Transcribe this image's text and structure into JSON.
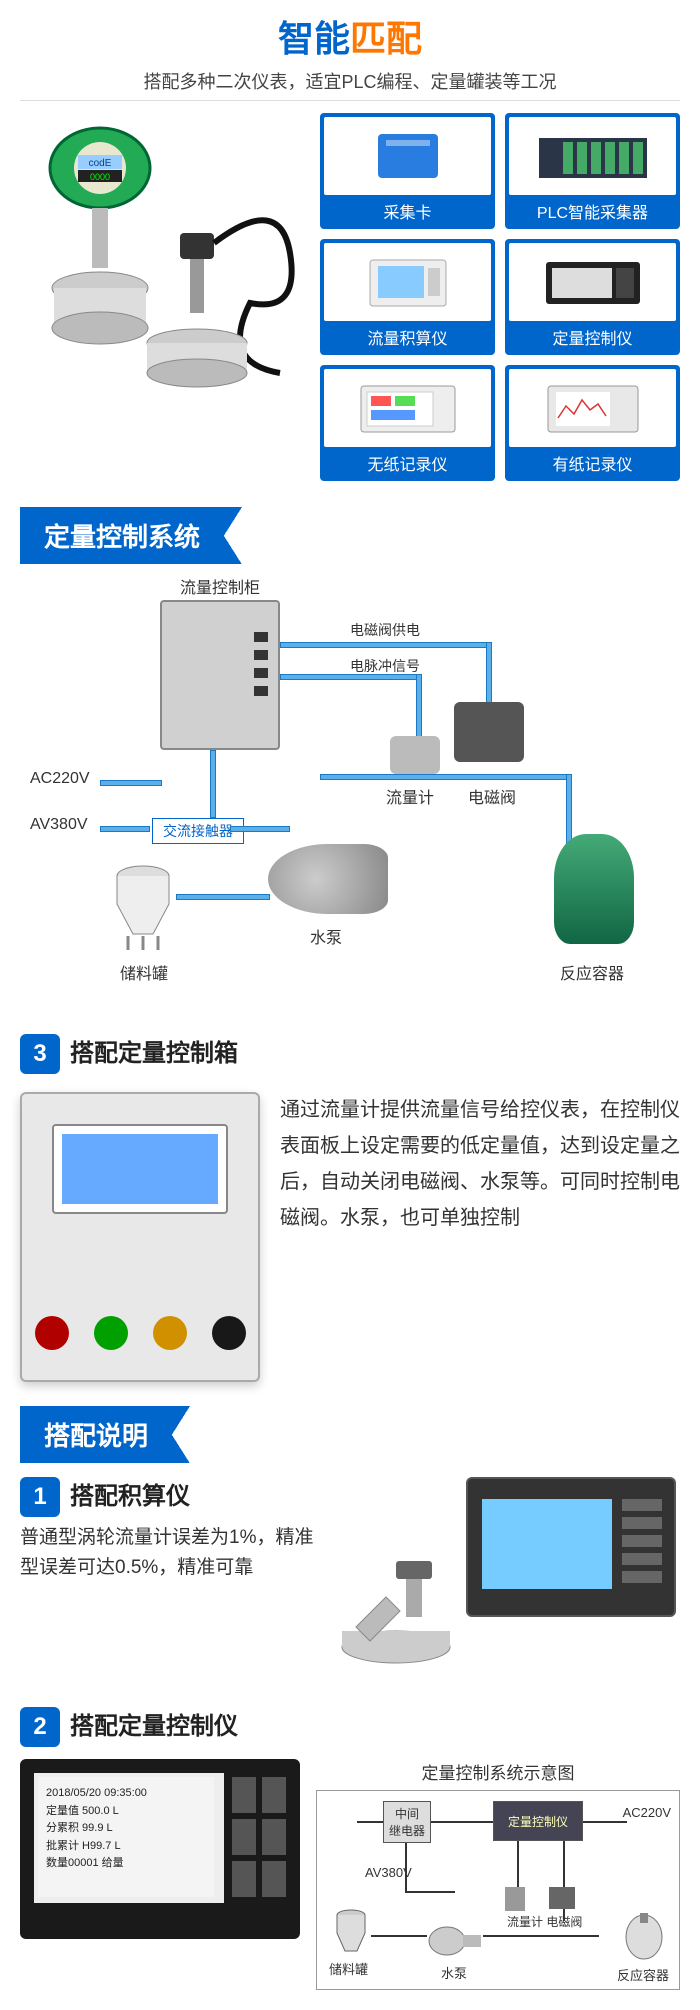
{
  "colors": {
    "blue": "#0066cc",
    "orange": "#ff7700",
    "pipe": "#5bb0ea",
    "pipe_border": "#1a7bc4"
  },
  "hero": {
    "title_blue": "智能",
    "title_orange": "匹配",
    "sub": "搭配多种二次仪表，适宜PLC编程、定量罐装等工况"
  },
  "cards": [
    {
      "label": "采集卡"
    },
    {
      "label": "PLC智能采集器"
    },
    {
      "label": "流量积算仪"
    },
    {
      "label": "定量控制仪"
    },
    {
      "label": "无纸记录仪"
    },
    {
      "label": "有纸记录仪"
    }
  ],
  "banner1": "定量控制系统",
  "diagram": {
    "cabinet": "流量控制柜",
    "valve_power": "电磁阀供电",
    "pulse": "电脉冲信号",
    "flowmeter": "流量计",
    "valve": "电磁阀",
    "ac220": "AC220V",
    "av380": "AV380V",
    "contactor": "交流接触器",
    "tank": "储料罐",
    "pump": "水泵",
    "reactor": "反应容器"
  },
  "step3": {
    "num": "3",
    "title": "搭配定量控制箱",
    "body": "通过流量计提供流量信号给控仪表，在控制仪表面板上设定需要的低定量值，达到设定量之后，自动关闭电磁阀、水泵等。可同时控制电磁阀。水泵，也可单独控制",
    "btn_colors": [
      "#b00000",
      "#00a000",
      "#d09000",
      "#181818"
    ]
  },
  "banner2": "搭配说明",
  "step1": {
    "num": "1",
    "title": "搭配积算仪",
    "body": "普通型涡轮流量计误差为1%，精准型误差可达0.5%，精准可靠"
  },
  "step2": {
    "num": "2",
    "title": "搭配定量控制仪",
    "diagram_title": "定量控制系统示意图",
    "relay": "中间\n继电器",
    "ctrl_box": "定量控制仪",
    "ac220": "AC220V",
    "av380": "AV380V",
    "tank": "储料罐",
    "pump": "水泵",
    "meter_valve": "流量计 电磁阀",
    "reactor": "反应容器",
    "lcd_lines": [
      "2018/05/20  09:35:00",
      "定量值 500.0   L",
      "分累积 99.9    L",
      "批累计 H99.7   L",
      "数量00001  给量"
    ]
  }
}
